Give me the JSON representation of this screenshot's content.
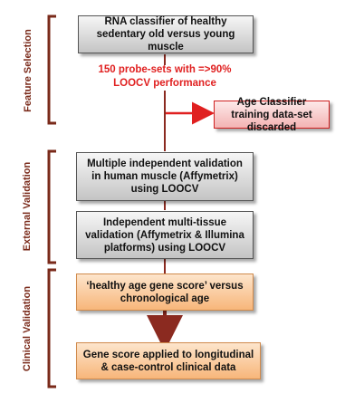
{
  "sections": {
    "feature_selection": "Feature Selection",
    "external_validation": "External Validation",
    "clinical_validation": "Clinical Validation"
  },
  "boxes": {
    "rna_classifier": "RNA classifier of healthy sedentary old versus young muscle",
    "probe_sets": "150 probe-sets with =>90% LOOCV performance",
    "age_classifier": "Age Classifier training data-set discarded",
    "multiple_validation": "Multiple independent validation in human muscle (Affymetrix) using LOOCV",
    "multi_tissue": "Independent multi-tissue validation (Affymetrix & Illumina platforms) using LOOCV",
    "gene_score": "‘healthy age gene score’ versus chronological age",
    "applied": "Gene score applied to longitudinal & case-control clinical data"
  },
  "colors": {
    "bracket": "#7a2a1a",
    "flow_line": "#8b2a20",
    "red_arrow": "#e02020",
    "grey_box": "#d4d4d4",
    "orange_box": "#fbc995",
    "red_box": "#f3b3b3"
  }
}
